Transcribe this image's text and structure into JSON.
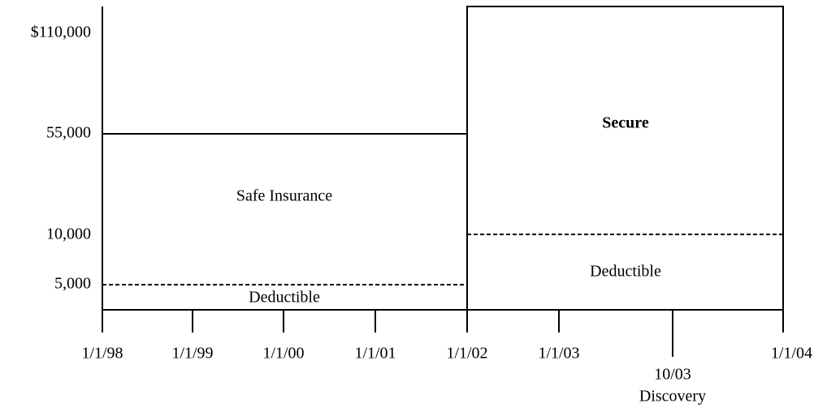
{
  "y_axis": {
    "labels": [
      "$110,000",
      "55,000",
      "10,000",
      "5,000"
    ]
  },
  "x_axis": {
    "labels": [
      "1/1/98",
      "1/1/99",
      "1/1/00",
      "1/1/01",
      "1/1/02",
      "1/1/03",
      "1/1/04"
    ],
    "marker": {
      "date": "10/03",
      "label": "Discovery"
    }
  },
  "regions": [
    {
      "label": "Safe Insurance",
      "deductible": "Deductible"
    },
    {
      "label": "Secure",
      "deductible": "Deductible"
    }
  ]
}
